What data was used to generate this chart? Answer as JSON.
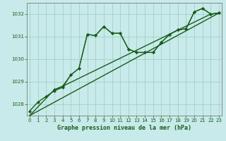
{
  "xlabel": "Graphe pression niveau de la mer (hPa)",
  "background_color": "#c8eaea",
  "grid_color": "#99ccbb",
  "line_color": "#1a5c1a",
  "ylim": [
    1027.5,
    1032.5
  ],
  "xlim": [
    -0.3,
    23.3
  ],
  "yticks": [
    1028,
    1029,
    1030,
    1031,
    1032
  ],
  "xticks": [
    0,
    1,
    2,
    3,
    4,
    5,
    6,
    7,
    8,
    9,
    10,
    11,
    12,
    13,
    14,
    15,
    16,
    17,
    18,
    19,
    20,
    21,
    22,
    23
  ],
  "series": [
    {
      "x": [
        0,
        1,
        2,
        3,
        4,
        5,
        6,
        7,
        8,
        9,
        10,
        11,
        12,
        13,
        14,
        15,
        16,
        17,
        18,
        19,
        20,
        21,
        22,
        23
      ],
      "y": [
        1027.7,
        1028.1,
        1028.35,
        1028.6,
        1028.75,
        1029.3,
        1029.6,
        1031.1,
        1031.05,
        1031.45,
        1031.15,
        1031.15,
        1030.45,
        1030.3,
        1030.3,
        1030.3,
        1030.75,
        1031.1,
        1031.3,
        1031.35,
        1032.1,
        1032.25,
        1032.0,
        1032.05
      ],
      "marker": "D",
      "markersize": 2.0,
      "linewidth": 1.0
    },
    {
      "x": [
        0,
        23
      ],
      "y": [
        1027.5,
        1032.05
      ],
      "marker": null,
      "linewidth": 1.0
    },
    {
      "x": [
        0,
        3,
        4,
        22,
        23
      ],
      "y": [
        1027.5,
        1028.65,
        1028.8,
        1032.0,
        1032.05
      ],
      "marker": null,
      "linewidth": 1.0
    },
    {
      "x": [
        3,
        4,
        5,
        6,
        7,
        8,
        9,
        10,
        11,
        12,
        13,
        14,
        15,
        16,
        17,
        18,
        19,
        20,
        21,
        22,
        23
      ],
      "y": [
        1028.65,
        1028.8,
        1029.3,
        1029.6,
        1031.1,
        1031.05,
        1031.45,
        1031.15,
        1031.15,
        1030.45,
        1030.3,
        1030.3,
        1030.3,
        1030.75,
        1031.1,
        1031.3,
        1031.35,
        1032.1,
        1032.25,
        1032.0,
        1032.05
      ],
      "marker": "D",
      "markersize": 2.0,
      "linewidth": 0.8
    }
  ]
}
